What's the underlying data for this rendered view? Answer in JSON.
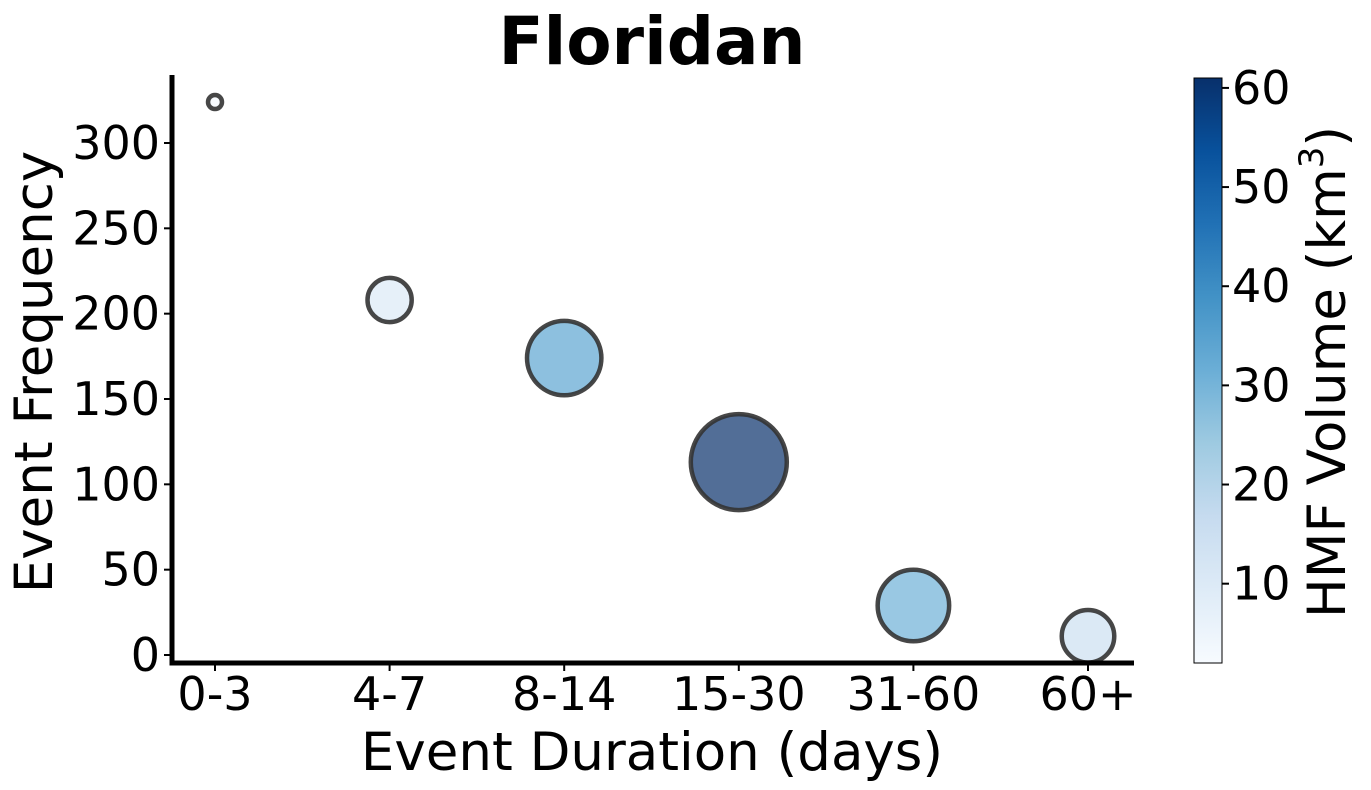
{
  "chart_data": {
    "type": "scatter",
    "title": "Floridan",
    "xlabel": "Event Duration (days)",
    "ylabel": "Event Frequency",
    "categories": [
      "0-3",
      "4-7",
      "8-14",
      "15-30",
      "31-60",
      "60+"
    ],
    "y_ticks": [
      "0",
      "50",
      "100",
      "150",
      "200",
      "250",
      "300"
    ],
    "ylim": [
      -5,
      340
    ],
    "grid": false,
    "points": [
      {
        "category": "0-3",
        "frequency": 324,
        "hmf_volume": 2
      },
      {
        "category": "4-7",
        "frequency": 208,
        "hmf_volume": 10
      },
      {
        "category": "8-14",
        "frequency": 174,
        "hmf_volume": 34
      },
      {
        "category": "15-30",
        "frequency": 113,
        "hmf_volume": 61
      },
      {
        "category": "31-60",
        "frequency": 29,
        "hmf_volume": 31
      },
      {
        "category": "60+",
        "frequency": 11,
        "hmf_volume": 15
      }
    ],
    "marker_size_encodes": "hmf_volume",
    "colorbar": {
      "label": "HMF Volume (km",
      "label_superscript": "3",
      "label_suffix": ")",
      "range": [
        2,
        61
      ],
      "ticks": [
        "10",
        "20",
        "30",
        "40",
        "50",
        "60"
      ],
      "colormap": "Blues",
      "colors": [
        "#f7fbff",
        "#deebf7",
        "#c6dbef",
        "#9ecae1",
        "#6baed6",
        "#4292c6",
        "#2171b5",
        "#08519c",
        "#08306b"
      ]
    },
    "marker_edge_color": "#333333",
    "marker_alpha": 0.7
  }
}
